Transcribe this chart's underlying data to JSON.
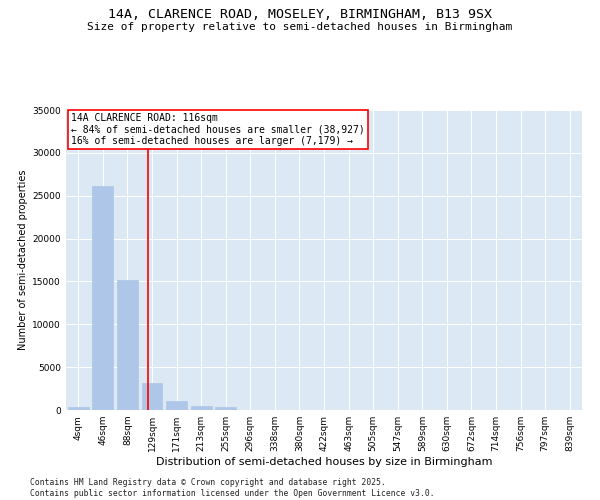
{
  "title": "14A, CLARENCE ROAD, MOSELEY, BIRMINGHAM, B13 9SX",
  "subtitle": "Size of property relative to semi-detached houses in Birmingham",
  "xlabel": "Distribution of semi-detached houses by size in Birmingham",
  "ylabel": "Number of semi-detached properties",
  "categories": [
    "4sqm",
    "46sqm",
    "88sqm",
    "129sqm",
    "171sqm",
    "213sqm",
    "255sqm",
    "296sqm",
    "338sqm",
    "380sqm",
    "422sqm",
    "463sqm",
    "505sqm",
    "547sqm",
    "589sqm",
    "630sqm",
    "672sqm",
    "714sqm",
    "756sqm",
    "797sqm",
    "839sqm"
  ],
  "values": [
    400,
    26100,
    15200,
    3200,
    1100,
    450,
    300,
    0,
    0,
    0,
    0,
    0,
    0,
    0,
    0,
    0,
    0,
    0,
    0,
    0,
    0
  ],
  "bar_color": "#aec6e8",
  "bar_edgecolor": "#aec6e8",
  "vline_x": 2.84,
  "vline_color": "red",
  "annotation_text": "14A CLARENCE ROAD: 116sqm\n← 84% of semi-detached houses are smaller (38,927)\n16% of semi-detached houses are larger (7,179) →",
  "annotation_box_color": "white",
  "annotation_box_edgecolor": "red",
  "ylim": [
    0,
    35000
  ],
  "yticks": [
    0,
    5000,
    10000,
    15000,
    20000,
    25000,
    30000,
    35000
  ],
  "background_color": "#dde8f5",
  "grid_color": "white",
  "footer_text": "Contains HM Land Registry data © Crown copyright and database right 2025.\nContains public sector information licensed under the Open Government Licence v3.0.",
  "title_fontsize": 9.5,
  "subtitle_fontsize": 8,
  "ylabel_fontsize": 7,
  "xlabel_fontsize": 8,
  "tick_fontsize": 6.5,
  "annotation_fontsize": 7,
  "footer_fontsize": 5.8
}
